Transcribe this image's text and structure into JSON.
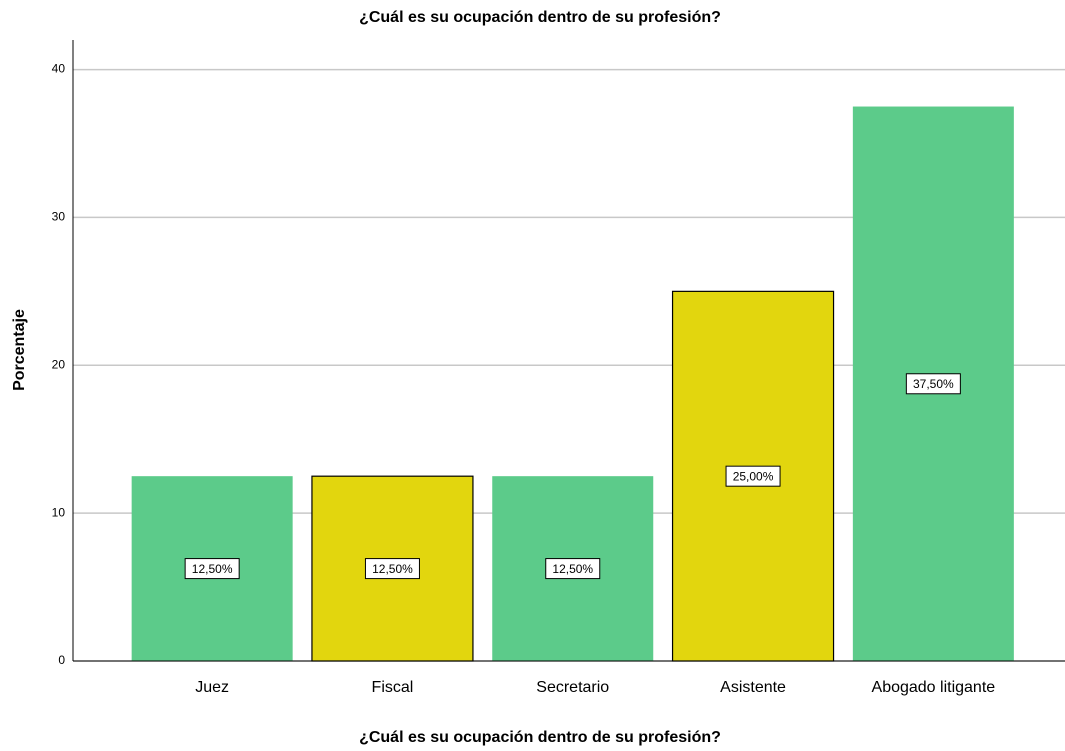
{
  "chart_data": {
    "type": "bar",
    "title": "¿Cuál es su ocupación dentro de su profesión?",
    "xlabel": "¿Cuál es su ocupación dentro de su profesión?",
    "ylabel": "Porcentaje",
    "categories": [
      "Juez",
      "Fiscal",
      "Secretario",
      "Asistente",
      "Abogado litigante"
    ],
    "values": [
      12.5,
      12.5,
      12.5,
      25,
      37.5
    ],
    "value_labels": [
      "12,50%",
      "12,50%",
      "12,50%",
      "25,00%",
      "37,50%"
    ],
    "colors": [
      "#5ccb8a",
      "#e2d60e",
      "#5ccb8a",
      "#e2d60e",
      "#5ccb8a"
    ],
    "edgecolors": [
      "none",
      "#000000",
      "none",
      "#000000",
      "none"
    ],
    "ylim": [
      0,
      42
    ],
    "yticks": [
      0,
      10,
      20,
      30,
      40
    ],
    "grid": true
  }
}
